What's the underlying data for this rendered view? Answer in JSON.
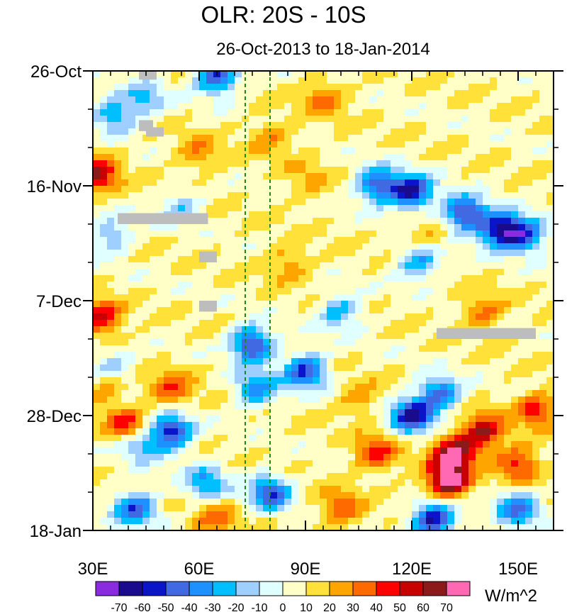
{
  "chart_data": {
    "type": "heatmap",
    "title": "OLR: 20S - 10S",
    "subtitle": "26-Oct-2013 to 18-Jan-2014",
    "x_range": [
      30,
      160
    ],
    "x_ticks": [
      {
        "value": 30,
        "label": "30E"
      },
      {
        "value": 60,
        "label": "60E"
      },
      {
        "value": 90,
        "label": "90E"
      },
      {
        "value": 120,
        "label": "120E"
      },
      {
        "value": 150,
        "label": "150E"
      }
    ],
    "y_range_days": [
      0,
      84
    ],
    "y_ticks": [
      {
        "day": 0,
        "label": "26-Oct"
      },
      {
        "day": 21,
        "label": "16-Nov"
      },
      {
        "day": 42,
        "label": "7-Dec"
      },
      {
        "day": 63,
        "label": "28-Dec"
      },
      {
        "day": 84,
        "label": "18-Jan"
      }
    ],
    "reference_longitudes": [
      73,
      80
    ],
    "colorbar": {
      "units": "W/m^2",
      "levels": [
        -70,
        -60,
        -50,
        -40,
        -30,
        -20,
        -10,
        0,
        10,
        20,
        30,
        40,
        50,
        60,
        70
      ],
      "colors": [
        "#8a2be2",
        "#1a0a8c",
        "#0a14c8",
        "#4169e1",
        "#1e90ff",
        "#00bfff",
        "#9fcfff",
        "#e0ffff",
        "#ffffc8",
        "#ffe13a",
        "#ffa500",
        "#ff6a00",
        "#ff0000",
        "#c80000",
        "#8b1a1a",
        "#ff69b4"
      ]
    },
    "anomalies": [
      {
        "lon": 110,
        "day": 21,
        "value": -55
      },
      {
        "lon": 120,
        "day": 22,
        "value": -70
      },
      {
        "lon": 135,
        "day": 26,
        "value": -65
      },
      {
        "lon": 145,
        "day": 29,
        "value": -70
      },
      {
        "lon": 152,
        "day": 30,
        "value": -55
      },
      {
        "lon": 122,
        "day": 35,
        "value": -40
      },
      {
        "lon": 100,
        "day": 44,
        "value": -35
      },
      {
        "lon": 75,
        "day": 50,
        "value": -65
      },
      {
        "lon": 90,
        "day": 55,
        "value": -60
      },
      {
        "lon": 76,
        "day": 58,
        "value": -45
      },
      {
        "lon": 120,
        "day": 63,
        "value": -70
      },
      {
        "lon": 128,
        "day": 59,
        "value": -50
      },
      {
        "lon": 52,
        "day": 66,
        "value": -65
      },
      {
        "lon": 43,
        "day": 68,
        "value": -40
      },
      {
        "lon": 35,
        "day": 55,
        "value": -45
      },
      {
        "lon": 42,
        "day": 80,
        "value": -55
      },
      {
        "lon": 62,
        "day": 75,
        "value": -40
      },
      {
        "lon": 80,
        "day": 77,
        "value": -55
      },
      {
        "lon": 126,
        "day": 82,
        "value": -70
      },
      {
        "lon": 150,
        "day": 80,
        "value": -50
      },
      {
        "lon": 36,
        "day": 8,
        "value": -40
      },
      {
        "lon": 45,
        "day": 5,
        "value": -30
      },
      {
        "lon": 35,
        "day": 30,
        "value": -30
      },
      {
        "lon": 55,
        "day": 25,
        "value": -25
      },
      {
        "lon": 65,
        "day": 1,
        "value": -60
      },
      {
        "lon": 132,
        "day": 70,
        "value": 60
      },
      {
        "lon": 140,
        "day": 66,
        "value": 50
      },
      {
        "lon": 130,
        "day": 75,
        "value": 70
      },
      {
        "lon": 150,
        "day": 72,
        "value": 40
      },
      {
        "lon": 155,
        "day": 62,
        "value": 35
      },
      {
        "lon": 110,
        "day": 70,
        "value": 35
      },
      {
        "lon": 31,
        "day": 19,
        "value": 50
      },
      {
        "lon": 32,
        "day": 45,
        "value": 45
      },
      {
        "lon": 34,
        "day": 57,
        "value": 40
      },
      {
        "lon": 40,
        "day": 65,
        "value": 45
      },
      {
        "lon": 52,
        "day": 58,
        "value": 30
      },
      {
        "lon": 90,
        "day": 20,
        "value": 15
      },
      {
        "lon": 80,
        "day": 12,
        "value": 20
      },
      {
        "lon": 95,
        "day": 5,
        "value": 25
      },
      {
        "lon": 60,
        "day": 15,
        "value": 20
      },
      {
        "lon": 85,
        "day": 35,
        "value": 20
      },
      {
        "lon": 105,
        "day": 60,
        "value": 20
      },
      {
        "lon": 140,
        "day": 44,
        "value": 25
      },
      {
        "lon": 100,
        "day": 80,
        "value": 30
      },
      {
        "lon": 65,
        "day": 82,
        "value": 25
      },
      {
        "lon": 125,
        "day": 30,
        "value": 15
      }
    ],
    "missing": [
      {
        "lon0": 43,
        "lon1": 48,
        "day0": 0,
        "day1": 1.6
      },
      {
        "lon0": 43,
        "lon1": 47,
        "day0": 9,
        "day1": 11
      },
      {
        "lon0": 45,
        "lon1": 50,
        "day0": 10.3,
        "day1": 12
      },
      {
        "lon0": 37,
        "lon1": 62.5,
        "day0": 26,
        "day1": 28
      },
      {
        "lon0": 60,
        "lon1": 65,
        "day0": 33,
        "day1": 35
      },
      {
        "lon0": 60,
        "lon1": 65,
        "day0": 42,
        "day1": 44
      },
      {
        "lon0": 127,
        "lon1": 155,
        "day0": 47,
        "day1": 49
      }
    ]
  }
}
